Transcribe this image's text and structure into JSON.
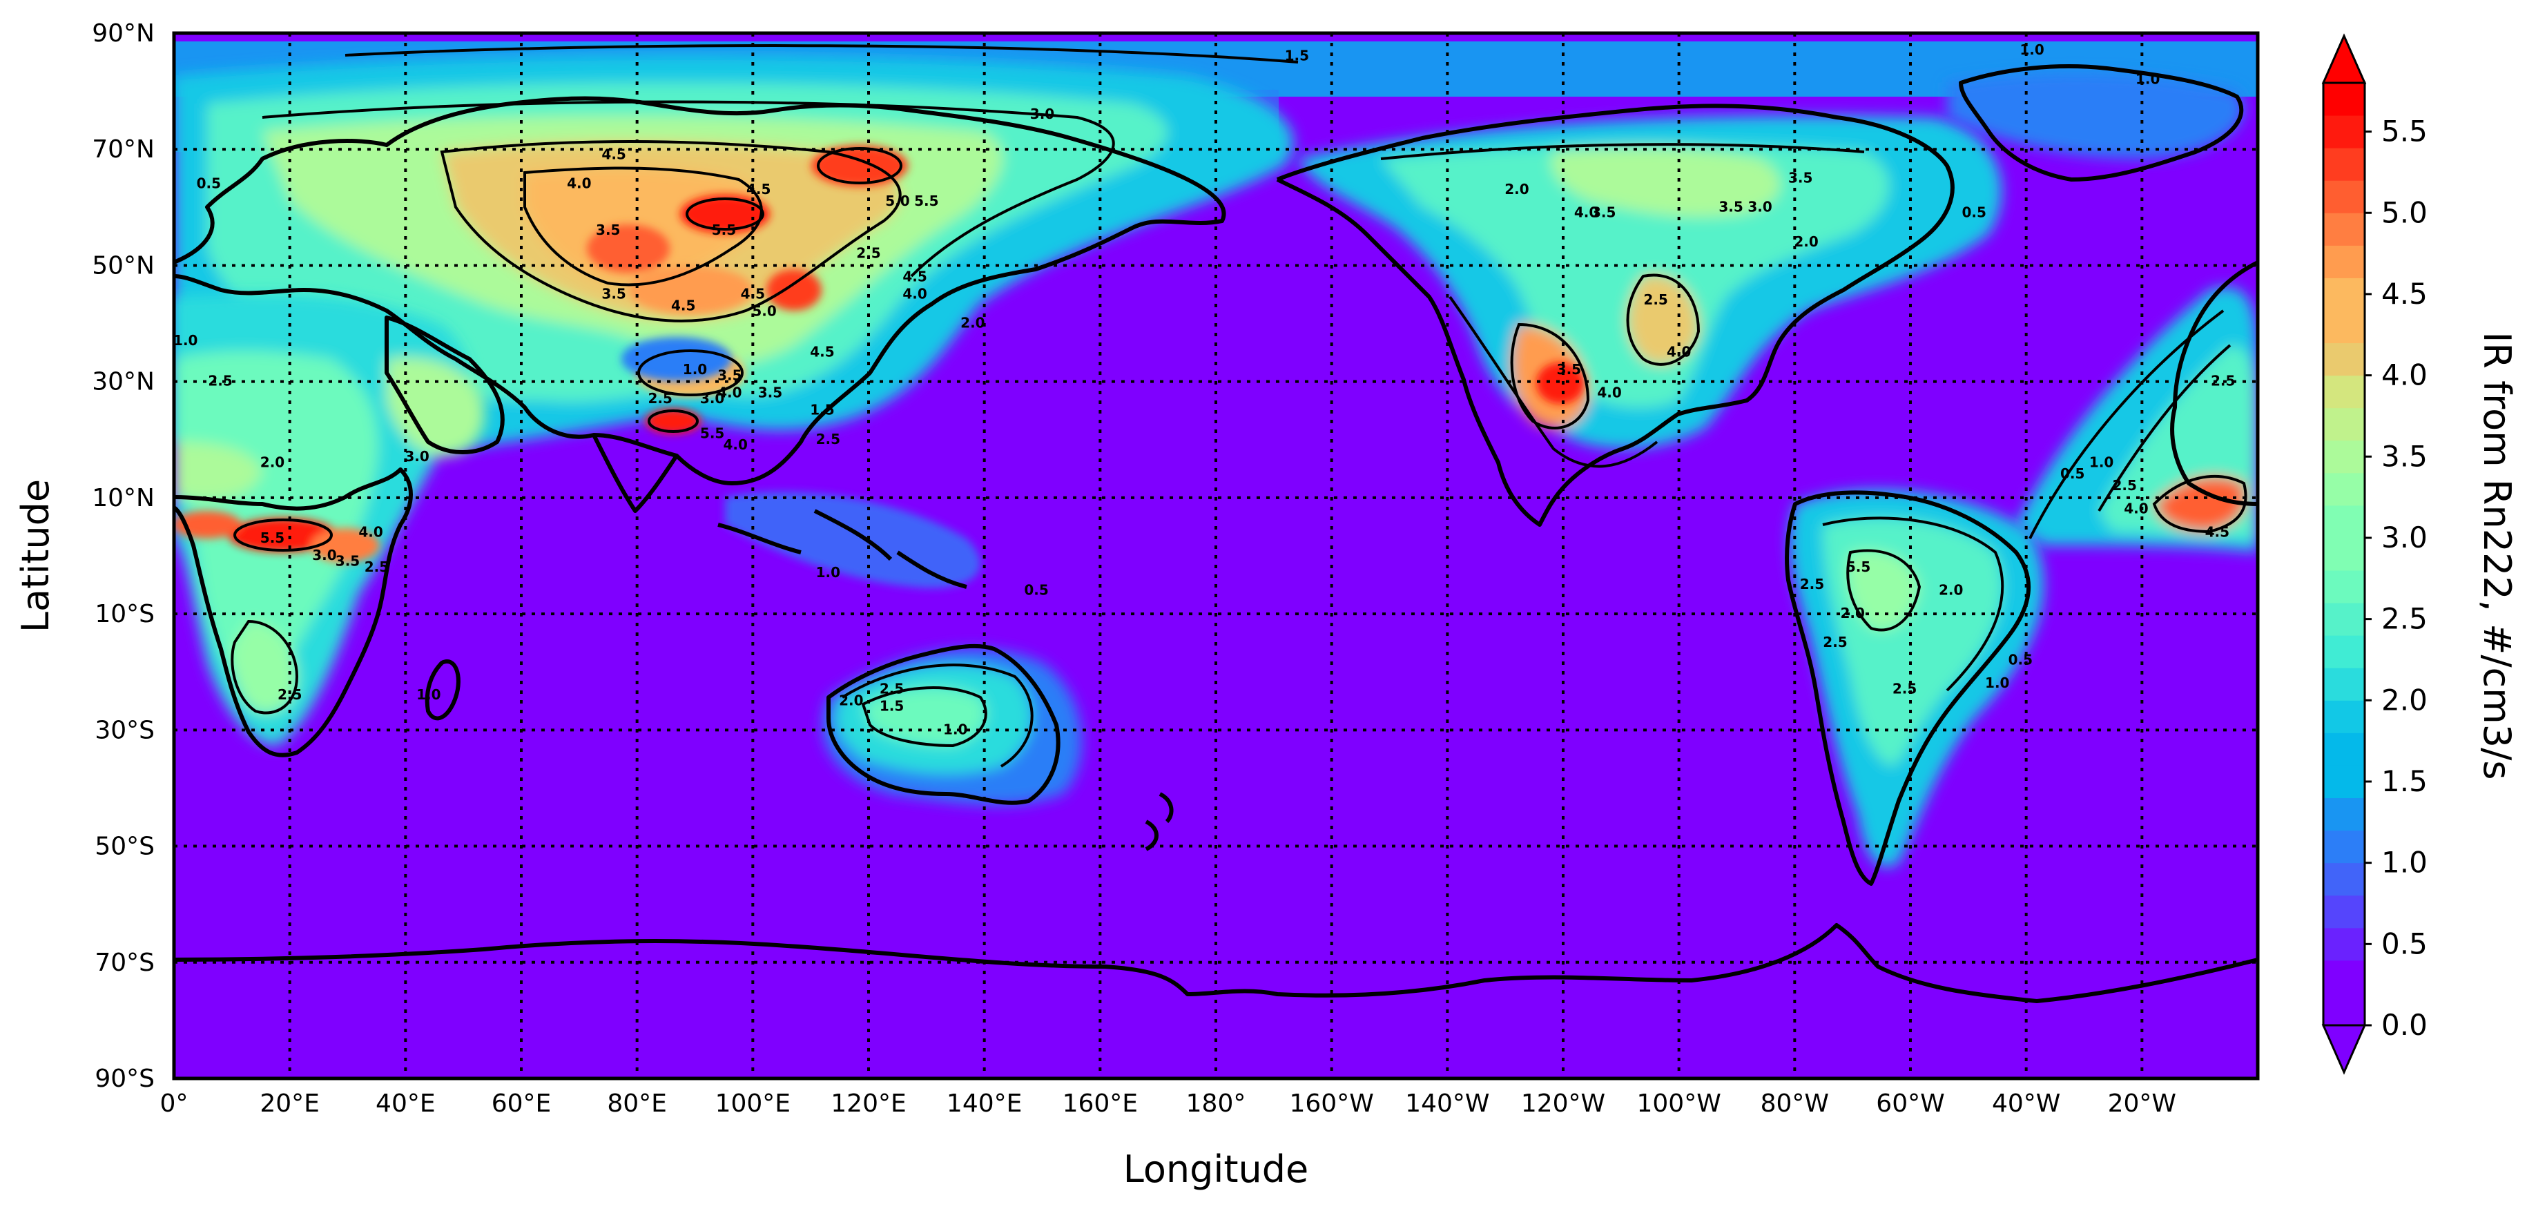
{
  "map": {
    "projection": "PlateCarree",
    "central_longitude": 0,
    "extent": {
      "lon": [
        0,
        360
      ],
      "lat": [
        -90,
        90
      ]
    },
    "xlabel": "Longitude",
    "ylabel": "Latitude",
    "x_ticks": [
      "0°",
      "20°E",
      "40°E",
      "60°E",
      "80°E",
      "100°E",
      "120°E",
      "140°E",
      "160°E",
      "180°",
      "160°W",
      "140°W",
      "120°W",
      "100°W",
      "80°W",
      "60°W",
      "40°W",
      "20°W"
    ],
    "y_ticks": [
      "90°N",
      "70°N",
      "50°N",
      "30°N",
      "10°N",
      "10°S",
      "30°S",
      "50°S",
      "70°S",
      "90°S"
    ],
    "gridlines": "dotted",
    "field": "Ionization rate from Rn222",
    "units": "#/cm3/s"
  },
  "colorbar": {
    "label": "IR from Rn222, #/cm3/s",
    "ticks": [
      "0.0",
      "0.5",
      "1.0",
      "1.5",
      "2.0",
      "2.5",
      "3.0",
      "3.5",
      "4.0",
      "4.5",
      "5.0",
      "5.5"
    ],
    "min": 0.0,
    "max": 5.8,
    "step": 0.2,
    "extend": "both",
    "colormap": "rainbow",
    "colors": [
      "#7f00ff",
      "#6a22fe",
      "#5545fc",
      "#4164f9",
      "#2c7ef7",
      "#1995f2",
      "#04b9ea",
      "#12c8e6",
      "#2adcdd",
      "#40ecd4",
      "#56f2c9",
      "#6cfabe",
      "#80feb3",
      "#96fea7",
      "#acfa9a",
      "#c0f28c",
      "#d4e67e",
      "#eaca6e",
      "#fcb95f",
      "#ff9c4f",
      "#ff7e41",
      "#ff5e30",
      "#ff3d1f",
      "#ff1a0e",
      "#ff0000"
    ]
  },
  "contour_labels": [
    {
      "text": "1.5",
      "lon": 194,
      "lat": 86
    },
    {
      "text": "1.0",
      "lon": 321,
      "lat": 87
    },
    {
      "text": "1.0",
      "lon": 341,
      "lat": 82
    },
    {
      "text": "3.0",
      "lon": 150,
      "lat": 76
    },
    {
      "text": "0.5",
      "lon": 6,
      "lat": 64
    },
    {
      "text": "4.0",
      "lon": 70,
      "lat": 64
    },
    {
      "text": "4.5",
      "lon": 76,
      "lat": 69
    },
    {
      "text": "4.5",
      "lon": 101,
      "lat": 63
    },
    {
      "text": "5.0",
      "lon": 125,
      "lat": 61
    },
    {
      "text": "5.5",
      "lon": 130,
      "lat": 61
    },
    {
      "text": "3.5",
      "lon": 75,
      "lat": 56
    },
    {
      "text": "5.5",
      "lon": 95,
      "lat": 56
    },
    {
      "text": "2.5",
      "lon": 120,
      "lat": 52
    },
    {
      "text": "4.5",
      "lon": 128,
      "lat": 48
    },
    {
      "text": "4.0",
      "lon": 128,
      "lat": 45
    },
    {
      "text": "3.5",
      "lon": 76,
      "lat": 45
    },
    {
      "text": "4.5",
      "lon": 88,
      "lat": 43
    },
    {
      "text": "4.5",
      "lon": 100,
      "lat": 45
    },
    {
      "text": "5.0",
      "lon": 102,
      "lat": 42
    },
    {
      "text": "2.0",
      "lon": 138,
      "lat": 40
    },
    {
      "text": "1.0",
      "lon": 2,
      "lat": 37
    },
    {
      "text": "2.5",
      "lon": 8,
      "lat": 30
    },
    {
      "text": "4.5",
      "lon": 112,
      "lat": 35
    },
    {
      "text": "1.0",
      "lon": 90,
      "lat": 32
    },
    {
      "text": "3.5",
      "lon": 96,
      "lat": 31
    },
    {
      "text": "4.0",
      "lon": 96,
      "lat": 28
    },
    {
      "text": "3.0",
      "lon": 93,
      "lat": 27
    },
    {
      "text": "3.5",
      "lon": 103,
      "lat": 28
    },
    {
      "text": "2.5",
      "lon": 84,
      "lat": 27
    },
    {
      "text": "1.5",
      "lon": 112,
      "lat": 25
    },
    {
      "text": "2.5",
      "lon": 113,
      "lat": 20
    },
    {
      "text": "5.5",
      "lon": 93,
      "lat": 21
    },
    {
      "text": "4.0",
      "lon": 97,
      "lat": 19
    },
    {
      "text": "2.0",
      "lon": 17,
      "lat": 16
    },
    {
      "text": "3.0",
      "lon": 42,
      "lat": 17
    },
    {
      "text": "5.5",
      "lon": 17,
      "lat": 3
    },
    {
      "text": "3.0",
      "lon": 26,
      "lat": 0
    },
    {
      "text": "3.5",
      "lon": 30,
      "lat": -1
    },
    {
      "text": "4.0",
      "lon": 34,
      "lat": 4
    },
    {
      "text": "2.5",
      "lon": 35,
      "lat": -2
    },
    {
      "text": "1.0",
      "lon": 113,
      "lat": -3
    },
    {
      "text": "0.5",
      "lon": 149,
      "lat": -6
    },
    {
      "text": "2.5",
      "lon": 20,
      "lat": -24
    },
    {
      "text": "1.0",
      "lon": 44,
      "lat": -24
    },
    {
      "text": "2.0",
      "lon": 117,
      "lat": -25
    },
    {
      "text": "2.5",
      "lon": 124,
      "lat": -23
    },
    {
      "text": "1.5",
      "lon": 124,
      "lat": -26
    },
    {
      "text": "1.0",
      "lon": 135,
      "lat": -30
    },
    {
      "text": "2.0",
      "lon": 232,
      "lat": 63
    },
    {
      "text": "4.0",
      "lon": 244,
      "lat": 59
    },
    {
      "text": "3.5",
      "lon": 247,
      "lat": 59
    },
    {
      "text": "3.5",
      "lon": 269,
      "lat": 60
    },
    {
      "text": "3.0",
      "lon": 274,
      "lat": 60
    },
    {
      "text": "3.5",
      "lon": 281,
      "lat": 65
    },
    {
      "text": "2.0",
      "lon": 282,
      "lat": 54
    },
    {
      "text": "0.5",
      "lon": 311,
      "lat": 59
    },
    {
      "text": "2.5",
      "lon": 256,
      "lat": 44
    },
    {
      "text": "4.0",
      "lon": 260,
      "lat": 35
    },
    {
      "text": "3.5",
      "lon": 241,
      "lat": 32
    },
    {
      "text": "4.0",
      "lon": 248,
      "lat": 28
    },
    {
      "text": "2.5",
      "lon": 354,
      "lat": 30
    },
    {
      "text": "0.5",
      "lon": 328,
      "lat": 14
    },
    {
      "text": "1.0",
      "lon": 333,
      "lat": 16
    },
    {
      "text": "2.5",
      "lon": 337,
      "lat": 12
    },
    {
      "text": "4.0",
      "lon": 339,
      "lat": 8
    },
    {
      "text": "4.5",
      "lon": 353,
      "lat": 4
    },
    {
      "text": "5.5",
      "lon": 291,
      "lat": -2
    },
    {
      "text": "2.0",
      "lon": 307,
      "lat": -6
    },
    {
      "text": "2.5",
      "lon": 283,
      "lat": -5
    },
    {
      "text": "2.0",
      "lon": 290,
      "lat": -10
    },
    {
      "text": "2.5",
      "lon": 287,
      "lat": -15
    },
    {
      "text": "2.5",
      "lon": 299,
      "lat": -23
    },
    {
      "text": "1.0",
      "lon": 315,
      "lat": -22
    },
    {
      "text": "0.5",
      "lon": 319,
      "lat": -18
    }
  ]
}
